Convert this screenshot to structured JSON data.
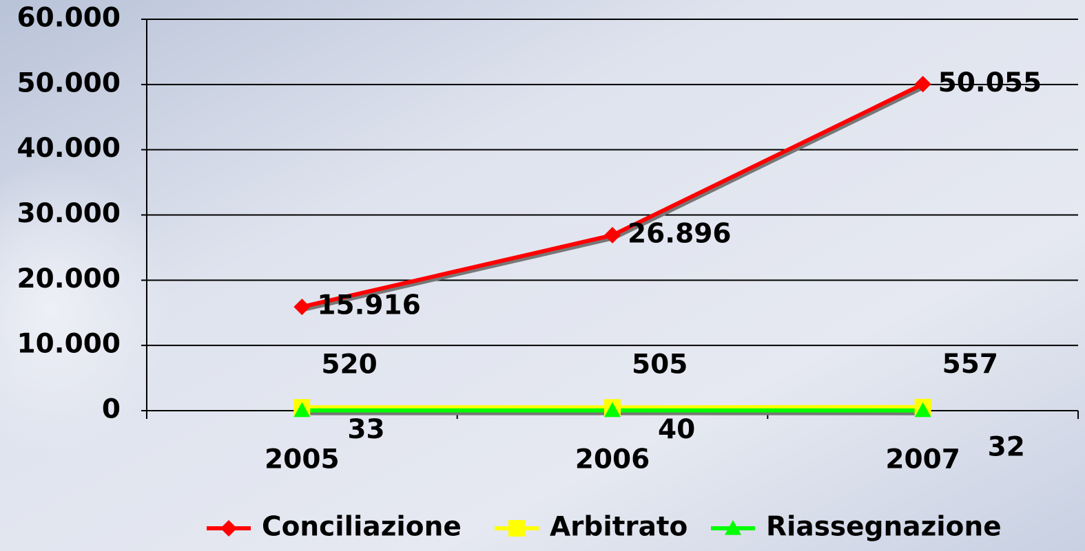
{
  "chart_data": {
    "type": "line",
    "categories": [
      "2005",
      "2006",
      "2007"
    ],
    "series": [
      {
        "name": "Conciliazione",
        "color": "#ff0000",
        "marker": "diamond",
        "values": [
          15916,
          26896,
          50055
        ],
        "value_labels": [
          "15.916",
          "26.896",
          "50.055"
        ]
      },
      {
        "name": "Arbitrato",
        "color": "#ffff00",
        "marker": "square",
        "values": [
          520,
          505,
          557
        ]
      },
      {
        "name": "Riassegnazione",
        "color": "#00ff00",
        "marker": "triangle",
        "values": [
          33,
          40,
          32
        ]
      }
    ],
    "ylim": [
      0,
      60000
    ],
    "yticks": [
      {
        "value": 0,
        "label": "0"
      },
      {
        "value": 10000,
        "label": "10.000"
      },
      {
        "value": 20000,
        "label": "20.000"
      },
      {
        "value": 30000,
        "label": "30.000"
      },
      {
        "value": 40000,
        "label": "40.000"
      },
      {
        "value": 50000,
        "label": "50.000"
      },
      {
        "value": 60000,
        "label": "60.000"
      }
    ],
    "grid": true,
    "legend": "bottom"
  }
}
